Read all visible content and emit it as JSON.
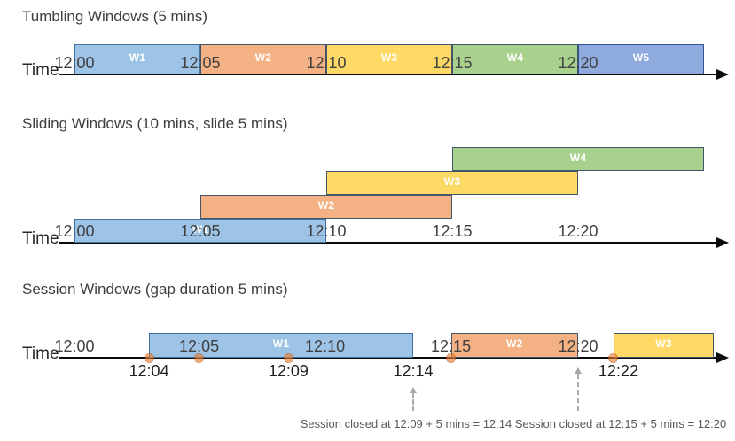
{
  "colors": {
    "blue": {
      "fill": "#9DC3E6",
      "border": "#41719C"
    },
    "orange": {
      "fill": "#F4B183",
      "border": "#44546A"
    },
    "yellow": {
      "fill": "#FFD966",
      "border": "#44546A"
    },
    "green": {
      "fill": "#A9D18E",
      "border": "#44546A"
    },
    "indigo": {
      "fill": "#8FAADC",
      "border": "#2F5597"
    },
    "event_dot_fill": "#ED7D31",
    "event_dot_border": "#C55A11",
    "axis": "#0a0a0a"
  },
  "sections": {
    "tumbling": {
      "title": "Tumbling Windows (5 mins)",
      "axis_label": "Time",
      "windows": [
        {
          "label": "W1",
          "start": 0,
          "end": 5,
          "color": "blue"
        },
        {
          "label": "W2",
          "start": 5,
          "end": 10,
          "color": "orange"
        },
        {
          "label": "W3",
          "start": 10,
          "end": 15,
          "color": "yellow"
        },
        {
          "label": "W4",
          "start": 15,
          "end": 20,
          "color": "green"
        },
        {
          "label": "W5",
          "start": 20,
          "end": 25,
          "color": "indigo"
        }
      ],
      "ticks": [
        {
          "label": "12:00",
          "t": 0
        },
        {
          "label": "12:05",
          "t": 5
        },
        {
          "label": "12:10",
          "t": 10
        },
        {
          "label": "12:15",
          "t": 15
        },
        {
          "label": "12:20",
          "t": 20
        }
      ]
    },
    "sliding": {
      "title": "Sliding Windows (10 mins, slide 5 mins)",
      "axis_label": "Time",
      "windows": [
        {
          "label": "W1",
          "start": 0,
          "end": 10,
          "row": 0,
          "color": "blue"
        },
        {
          "label": "W2",
          "start": 5,
          "end": 15,
          "row": 1,
          "color": "orange"
        },
        {
          "label": "W3",
          "start": 10,
          "end": 20,
          "row": 2,
          "color": "yellow"
        },
        {
          "label": "W4",
          "start": 15,
          "end": 25,
          "row": 3,
          "color": "green"
        }
      ],
      "ticks": [
        {
          "label": "12:00",
          "t": 0
        },
        {
          "label": "12:05",
          "t": 5
        },
        {
          "label": "12:10",
          "t": 10
        },
        {
          "label": "12:15",
          "t": 15
        },
        {
          "label": "12:20",
          "t": 20
        }
      ]
    },
    "session": {
      "title": "Session Windows (gap duration 5 mins)",
      "axis_label": "Time",
      "windows": [
        {
          "label": "W1",
          "start": 2.96,
          "end": 13.45,
          "color": "blue"
        },
        {
          "label": "W2",
          "start": 14.95,
          "end": 20.0,
          "color": "orange"
        },
        {
          "label": "W3",
          "start": 21.4,
          "end": 25.4,
          "color": "yellow"
        }
      ],
      "ticks": [
        {
          "label": "12:00",
          "t": 0
        },
        {
          "label": "12:05",
          "t": 4.95
        },
        {
          "label": "12:10",
          "t": 9.95
        },
        {
          "label": "12:15",
          "t": 14.95
        },
        {
          "label": "12:20",
          "t": 20
        }
      ],
      "events": [
        {
          "t": 2.96
        },
        {
          "t": 4.93
        },
        {
          "t": 8.5
        },
        {
          "t": 14.93
        },
        {
          "t": 21.4
        }
      ],
      "event_labels": [
        {
          "label": "12:04",
          "t": 2.96
        },
        {
          "label": "12:09",
          "t": 8.5
        },
        {
          "label": "12:14",
          "t": 13.45
        },
        {
          "label": "12:22",
          "t": 21.6
        }
      ],
      "annotations": [
        {
          "text": "Session closed at 12:09 + 5 mins = 12:14",
          "arrow_t": 13.45
        },
        {
          "text": "Session closed at 12:15 + 5 mins = 12:20",
          "arrow_t": 20.0
        }
      ]
    }
  }
}
